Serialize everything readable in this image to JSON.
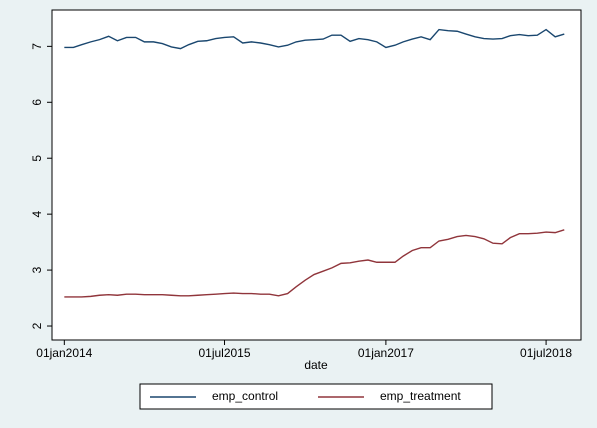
{
  "chart_data": {
    "type": "line",
    "x_label": "date",
    "x": [
      "2014-01-01",
      "2014-02-01",
      "2014-03-01",
      "2014-04-01",
      "2014-05-01",
      "2014-06-01",
      "2014-07-01",
      "2014-08-01",
      "2014-09-01",
      "2014-10-01",
      "2014-11-01",
      "2014-12-01",
      "2015-01-01",
      "2015-02-01",
      "2015-03-01",
      "2015-04-01",
      "2015-05-01",
      "2015-06-01",
      "2015-07-01",
      "2015-08-01",
      "2015-09-01",
      "2015-10-01",
      "2015-11-01",
      "2015-12-01",
      "2016-01-01",
      "2016-02-01",
      "2016-03-01",
      "2016-04-01",
      "2016-05-01",
      "2016-06-01",
      "2016-07-01",
      "2016-08-01",
      "2016-09-01",
      "2016-10-01",
      "2016-11-01",
      "2016-12-01",
      "2017-01-01",
      "2017-02-01",
      "2017-03-01",
      "2017-04-01",
      "2017-05-01",
      "2017-06-01",
      "2017-07-01",
      "2017-08-01",
      "2017-09-01",
      "2017-10-01",
      "2017-11-01",
      "2017-12-01",
      "2018-01-01",
      "2018-02-01",
      "2018-03-01",
      "2018-04-01",
      "2018-05-01",
      "2018-06-01",
      "2018-07-01",
      "2018-08-01",
      "2018-09-01"
    ],
    "series": [
      {
        "name": "emp_control",
        "color": "#1a476f",
        "values": [
          6.98,
          6.98,
          7.03,
          7.08,
          7.12,
          7.18,
          7.1,
          7.16,
          7.16,
          7.08,
          7.08,
          7.05,
          6.99,
          6.96,
          7.03,
          7.09,
          7.1,
          7.14,
          7.16,
          7.17,
          7.06,
          7.08,
          7.06,
          7.03,
          6.99,
          7.02,
          7.08,
          7.11,
          7.12,
          7.13,
          7.2,
          7.2,
          7.09,
          7.14,
          7.12,
          7.08,
          6.98,
          7.02,
          7.08,
          7.13,
          7.17,
          7.12,
          7.3,
          7.28,
          7.27,
          7.22,
          7.17,
          7.14,
          7.13,
          7.14,
          7.19,
          7.21,
          7.19,
          7.2,
          7.3,
          7.17,
          7.22
        ]
      },
      {
        "name": "emp_treatment",
        "color": "#90353b",
        "values": [
          2.52,
          2.52,
          2.52,
          2.53,
          2.55,
          2.56,
          2.55,
          2.57,
          2.57,
          2.56,
          2.56,
          2.56,
          2.55,
          2.54,
          2.54,
          2.55,
          2.56,
          2.57,
          2.58,
          2.59,
          2.58,
          2.58,
          2.57,
          2.57,
          2.54,
          2.58,
          2.7,
          2.82,
          2.92,
          2.98,
          3.04,
          3.12,
          3.13,
          3.16,
          3.18,
          3.14,
          3.14,
          3.14,
          3.25,
          3.35,
          3.4,
          3.4,
          3.52,
          3.55,
          3.6,
          3.62,
          3.6,
          3.56,
          3.48,
          3.47,
          3.58,
          3.65,
          3.65,
          3.66,
          3.68,
          3.67,
          3.72
        ]
      }
    ],
    "xlim": [
      "2013-11-20",
      "2018-10-28"
    ],
    "xticks": [
      {
        "value": "2014-01-01",
        "label": "01jan2014"
      },
      {
        "value": "2015-07-01",
        "label": "01jul2015"
      },
      {
        "value": "2017-01-01",
        "label": "01jan2017"
      },
      {
        "value": "2018-07-01",
        "label": "01jul2018"
      }
    ],
    "ylim": [
      1.75,
      7.65
    ],
    "yticks": [
      2,
      3,
      4,
      5,
      6,
      7
    ],
    "grid": false,
    "legend": "bottom"
  }
}
